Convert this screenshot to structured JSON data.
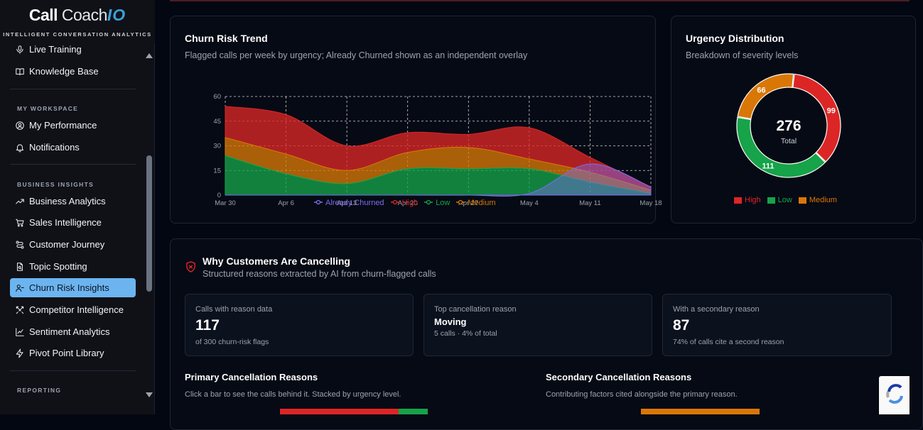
{
  "brand": {
    "part1": "Call",
    "part2": "Coach",
    "part3": "IO",
    "subtitle": "INTELLIGENT CONVERSATION ANALYTICS"
  },
  "sidebar": {
    "cut_item": "Live Training",
    "knowledge_base": "Knowledge Base",
    "section_workspace": "MY WORKSPACE",
    "my_performance": "My Performance",
    "notifications": "Notifications",
    "section_insights": "BUSINESS INSIGHTS",
    "items": [
      {
        "label": "Business Analytics",
        "icon": "trending-up-icon"
      },
      {
        "label": "Sales Intelligence",
        "icon": "cart-icon"
      },
      {
        "label": "Customer Journey",
        "icon": "route-icon"
      },
      {
        "label": "Topic Spotting",
        "icon": "document-search-icon"
      },
      {
        "label": "Churn Risk Insights",
        "icon": "user-minus-icon",
        "active": true
      },
      {
        "label": "Competitor Intelligence",
        "icon": "swords-icon"
      },
      {
        "label": "Sentiment Analytics",
        "icon": "line-chart-icon"
      },
      {
        "label": "Pivot Point Library",
        "icon": "zap-icon"
      }
    ],
    "section_reporting": "REPORTING"
  },
  "churn_trend": {
    "title": "Churn Risk Trend",
    "subtitle": "Flagged calls per week by urgency; Already Churned shown as an independent overlay"
  },
  "chart_data": [
    {
      "type": "area",
      "title": "Churn Risk Trend",
      "x": [
        "Mar 30",
        "Apr 6",
        "Apr 13",
        "Apr 20",
        "Apr 27",
        "May 4",
        "May 11",
        "May 18"
      ],
      "ylim": [
        0,
        60
      ],
      "yticks": [
        0,
        15,
        30,
        45,
        60
      ],
      "stacked": true,
      "grid": true,
      "legend_position": "bottom",
      "series": [
        {
          "name": "Low",
          "color": "#16a34a",
          "values": [
            24,
            13,
            7,
            16,
            16,
            16,
            8,
            1
          ]
        },
        {
          "name": "Medium",
          "color": "#d97706",
          "values": [
            11,
            12,
            8,
            10,
            13,
            6,
            6,
            2
          ]
        },
        {
          "name": "High",
          "color": "#dc2626",
          "values": [
            19,
            24,
            15,
            12,
            8,
            19,
            9,
            2
          ]
        }
      ],
      "overlay": {
        "name": "Already Churned",
        "color": "#7c6cf0",
        "values": [
          0,
          0,
          0,
          0,
          0,
          1,
          19,
          5
        ]
      }
    },
    {
      "type": "pie",
      "title": "Urgency Distribution",
      "donut": true,
      "total": 276,
      "total_label": "Total",
      "legend_position": "bottom",
      "slices": [
        {
          "name": "High",
          "value": 99,
          "color": "#dc2626"
        },
        {
          "name": "Low",
          "value": 111,
          "color": "#16a34a"
        },
        {
          "name": "Medium",
          "value": 66,
          "color": "#d97706"
        }
      ]
    }
  ],
  "urgency": {
    "title": "Urgency Distribution",
    "subtitle": "Breakdown of severity levels",
    "total_value": "276",
    "total_label": "Total"
  },
  "why": {
    "title": "Why Customers Are Cancelling",
    "subtitle": "Structured reasons extracted by AI from churn-flagged calls",
    "stats": [
      {
        "label": "Calls with reason data",
        "value": "117",
        "note": "of 300 churn-risk flags"
      },
      {
        "label": "Top cancellation reason",
        "value": "Moving",
        "note": "5 calls · 4% of total"
      },
      {
        "label": "With a secondary reason",
        "value": "87",
        "note": "74% of calls cite a second reason"
      }
    ],
    "primary": {
      "title": "Primary Cancellation Reasons",
      "subtitle": "Click a bar to see the calls behind it. Stacked by urgency level."
    },
    "secondary": {
      "title": "Secondary Cancellation Reasons",
      "subtitle": "Contributing factors cited alongside the primary reason."
    }
  }
}
